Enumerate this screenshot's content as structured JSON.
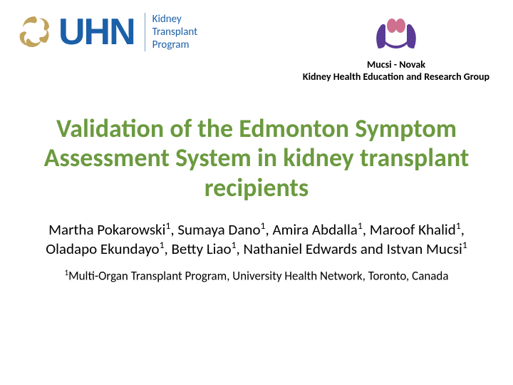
{
  "logos": {
    "left": {
      "uhn": "UHN",
      "program_line1": "Kidney",
      "program_line2": "Transplant",
      "program_line3": "Program",
      "swirl_color": "#c2a35c",
      "text_color": "#1b5fa8"
    },
    "right": {
      "group_name": "Mucsi - Novak",
      "group_desc": "Kidney Health Education and Research Group",
      "hands_color": "#5a3b96",
      "kidney_color": "#d07090"
    }
  },
  "title": {
    "text": "Validation of the Edmonton Symptom Assessment System in kidney transplant recipients",
    "color": "#6b9a3f",
    "fontsize": 36
  },
  "authors": {
    "list": [
      {
        "name": "Martha Pokarowski",
        "sup": "1"
      },
      {
        "name": "Sumaya Dano",
        "sup": "1"
      },
      {
        "name": "Amira Abdalla",
        "sup": "1"
      },
      {
        "name": "Maroof Khalid",
        "sup": "1"
      },
      {
        "name": "Oladapo Ekundayo",
        "sup": "1"
      },
      {
        "name": "Betty Liao",
        "sup": "1"
      },
      {
        "name": "Nathaniel Edwards",
        "sup": ""
      },
      {
        "name": "Istvan Mucsi",
        "sup": "1"
      }
    ],
    "fontsize": 21
  },
  "affiliation": {
    "marker": "1",
    "text": "Multi-Organ Transplant Program, University Health Network, Toronto, Canada",
    "fontsize": 17
  },
  "background_color": "#ffffff"
}
